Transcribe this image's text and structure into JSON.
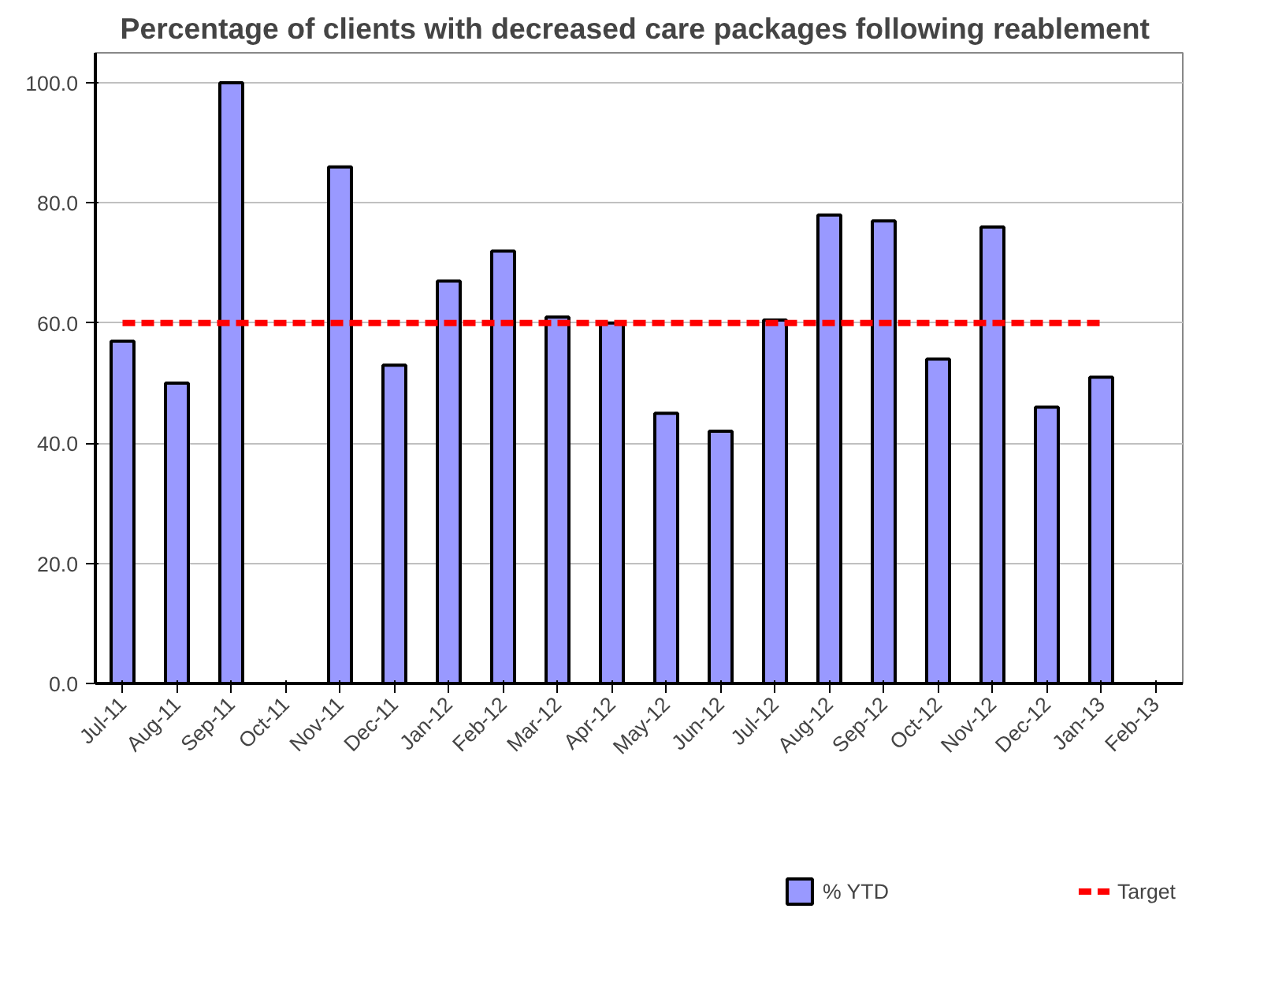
{
  "chart_data": {
    "type": "bar",
    "title": "Percentage of clients with  decreased care packages following reablement",
    "categories": [
      "Jul-11",
      "Aug-11",
      "Sep-11",
      "Oct-11",
      "Nov-11",
      "Dec-11",
      "Jan-12",
      "Feb-12",
      "Mar-12",
      "Apr-12",
      "May-12",
      "Jun-12",
      "Jul-12",
      "Aug-12",
      "Sep-12",
      "Oct-12",
      "Nov-12",
      "Dec-12",
      "Jan-13",
      "Feb-13"
    ],
    "series": [
      {
        "name": "% YTD",
        "color": "#9999ff",
        "values": [
          57,
          50,
          100,
          null,
          86,
          53,
          67,
          72,
          61,
          60,
          45,
          42,
          60.5,
          78,
          77,
          54,
          76,
          46,
          51,
          null
        ]
      },
      {
        "name": "Target",
        "type": "line",
        "color": "#ff0000",
        "line_style": "dashed",
        "values": [
          60,
          60,
          60,
          60,
          60,
          60,
          60,
          60,
          60,
          60,
          60,
          60,
          60,
          60,
          60,
          60,
          60,
          60,
          60,
          null
        ]
      }
    ],
    "ylim": [
      0,
      100
    ],
    "yticks": [
      {
        "value": 0,
        "label": "0.0"
      },
      {
        "value": 20,
        "label": "20.0"
      },
      {
        "value": 40,
        "label": "40.0"
      },
      {
        "value": 60,
        "label": "60.0"
      },
      {
        "value": 80,
        "label": "80.0"
      },
      {
        "value": 100,
        "label": "100.0"
      }
    ],
    "grid": "y",
    "legend": "bottom"
  }
}
